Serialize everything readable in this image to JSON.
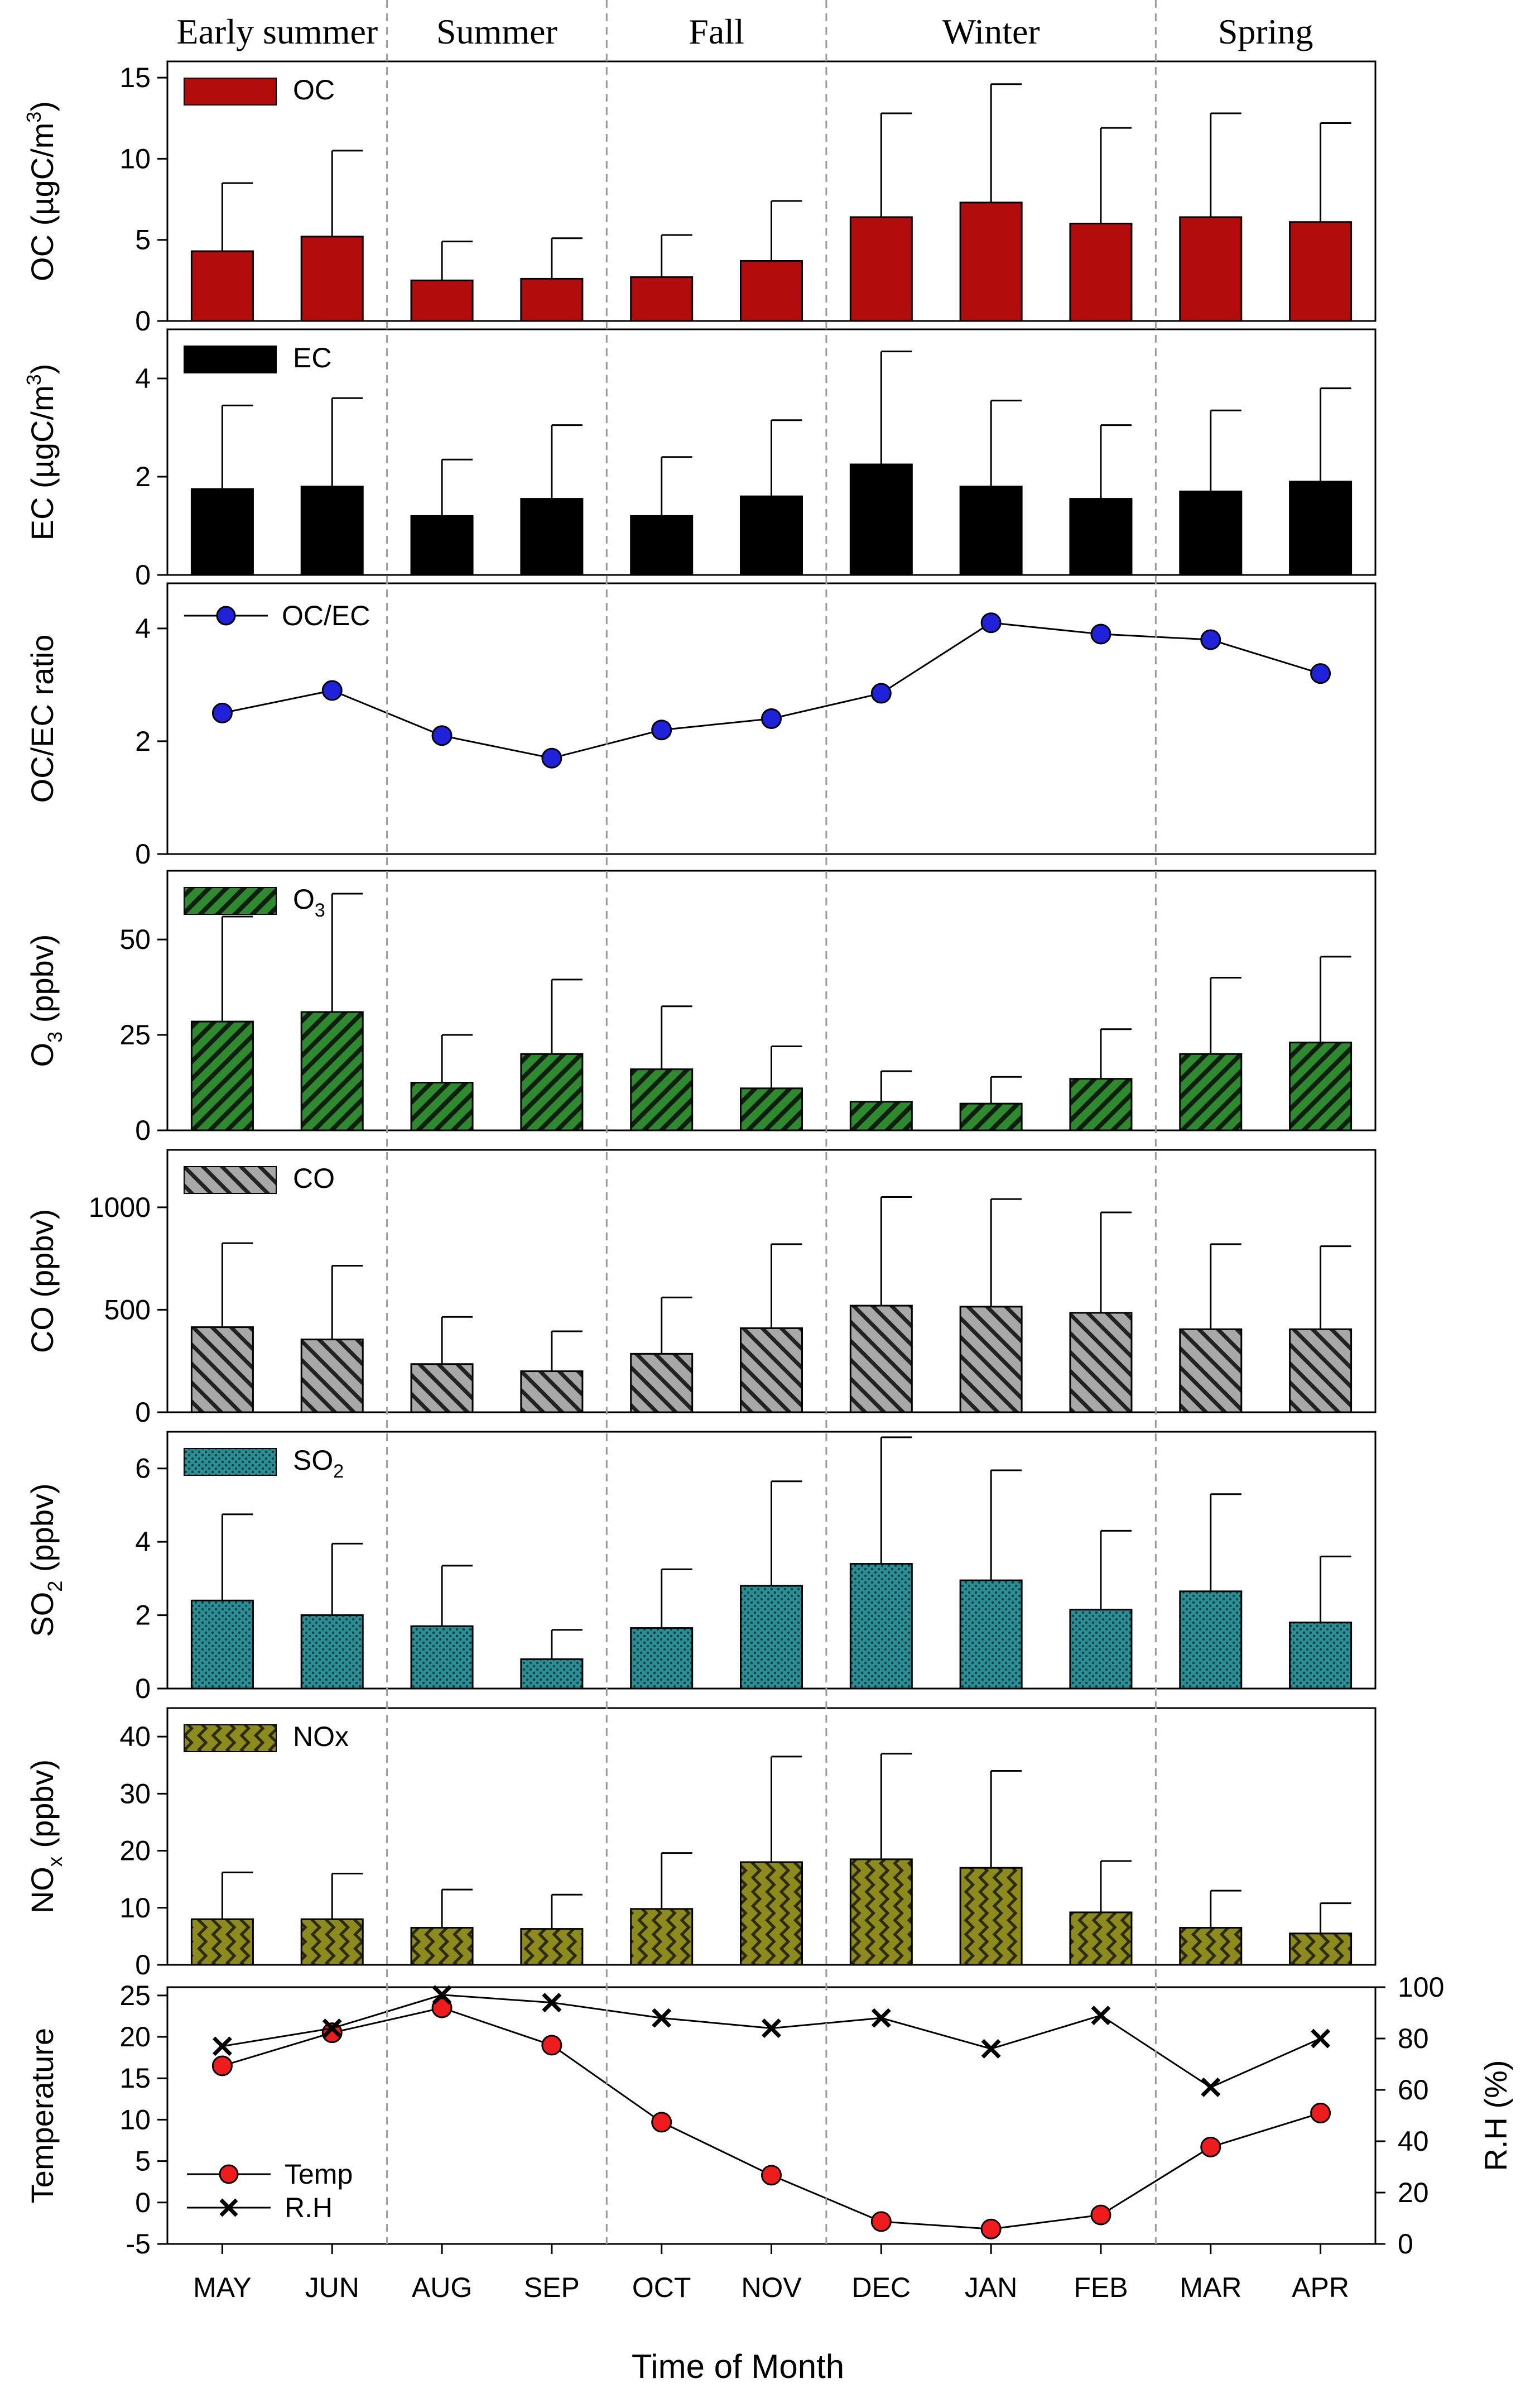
{
  "seasons": [
    {
      "label": "Early summer",
      "start": 0,
      "end": 2
    },
    {
      "label": "Summer",
      "start": 2,
      "end": 4
    },
    {
      "label": "Fall",
      "start": 4,
      "end": 6
    },
    {
      "label": "Winter",
      "start": 6,
      "end": 9
    },
    {
      "label": "Spring",
      "start": 9,
      "end": 11
    }
  ],
  "xaxis": {
    "categories": [
      "MAY",
      "JUN",
      "AUG",
      "SEP",
      "OCT",
      "NOV",
      "DEC",
      "JAN",
      "FEB",
      "MAR",
      "APR"
    ],
    "title": "Time of Month"
  },
  "colors": {
    "oc": "#b30c0c",
    "ec": "#000000",
    "ocec_marker": "#1f22d8",
    "o3": "#2f8a2f",
    "co": "#a8a8a8",
    "so2": "#2a8e95",
    "nox": "#8d8b1d",
    "temp_marker": "#ee1c1c",
    "divider": "#9a9a9a"
  },
  "chart_data": [
    {
      "id": "oc",
      "type": "bar",
      "title": "",
      "ylabel": {
        "main": "OC (µgC/m",
        "sup": "3",
        "tail": ")"
      },
      "legend": {
        "label": "OC",
        "sub": "",
        "pattern": "solid-oc"
      },
      "ylim": [
        0,
        16
      ],
      "yticks": [
        0,
        5,
        10,
        15
      ],
      "values": [
        4.3,
        5.2,
        2.5,
        2.6,
        2.7,
        3.7,
        6.4,
        7.3,
        6.0,
        6.4,
        6.1
      ],
      "errors": [
        4.2,
        5.3,
        2.4,
        2.5,
        2.6,
        3.7,
        6.4,
        7.3,
        5.9,
        6.4,
        6.1
      ]
    },
    {
      "id": "ec",
      "type": "bar",
      "title": "",
      "ylabel": {
        "main": "EC (µgC/m",
        "sup": "3",
        "tail": ")"
      },
      "legend": {
        "label": "EC",
        "sub": "",
        "pattern": "solid-ec"
      },
      "ylim": [
        0,
        5
      ],
      "yticks": [
        0,
        2,
        4
      ],
      "values": [
        1.75,
        1.8,
        1.2,
        1.55,
        1.2,
        1.6,
        2.25,
        1.8,
        1.55,
        1.7,
        1.9
      ],
      "errors": [
        1.7,
        1.8,
        1.15,
        1.5,
        1.2,
        1.55,
        2.3,
        1.75,
        1.5,
        1.65,
        1.9
      ]
    },
    {
      "id": "ocec",
      "type": "line",
      "title": "",
      "ylabel": {
        "main": "OC/EC ratio",
        "sup": "",
        "tail": ""
      },
      "legend": {
        "label": "OC/EC"
      },
      "ylim": [
        0,
        4.8
      ],
      "yticks": [
        0,
        2,
        4
      ],
      "values": [
        2.5,
        2.9,
        2.1,
        1.7,
        2.2,
        2.4,
        2.85,
        4.1,
        3.9,
        3.8,
        3.2
      ]
    },
    {
      "id": "o3",
      "type": "bar",
      "title": "",
      "ylabel": {
        "main": "O",
        "sub": "3",
        "tail": " (ppbv)"
      },
      "legend": {
        "label": "O",
        "sub": "3",
        "pattern": "diag-o3"
      },
      "ylim": [
        0,
        68
      ],
      "yticks": [
        0,
        25,
        50
      ],
      "values": [
        28.5,
        31,
        12.5,
        20,
        16,
        11,
        7.5,
        7,
        13.5,
        20,
        23
      ],
      "errors": [
        27.5,
        31,
        12.5,
        19.5,
        16.5,
        11,
        8,
        7,
        13,
        20,
        22.5
      ]
    },
    {
      "id": "co",
      "type": "bar",
      "title": "",
      "ylabel": {
        "main": "CO (ppbv)",
        "sup": "",
        "tail": ""
      },
      "legend": {
        "label": "CO",
        "sub": "",
        "pattern": "diag-co"
      },
      "ylim": [
        0,
        1280
      ],
      "yticks": [
        0,
        500,
        1000
      ],
      "values": [
        415,
        355,
        235,
        200,
        285,
        410,
        520,
        515,
        485,
        405,
        405
      ],
      "errors": [
        410,
        360,
        230,
        195,
        275,
        410,
        530,
        525,
        490,
        415,
        405
      ]
    },
    {
      "id": "so2",
      "type": "bar",
      "title": "",
      "ylabel": {
        "main": "SO",
        "sub": "2",
        "tail": " (ppbv)"
      },
      "legend": {
        "label": "SO",
        "sub": "2",
        "pattern": "dots-so2"
      },
      "ylim": [
        0,
        7
      ],
      "yticks": [
        0,
        2,
        4,
        6
      ],
      "values": [
        2.4,
        2.0,
        1.7,
        0.8,
        1.65,
        2.8,
        3.4,
        2.95,
        2.15,
        2.65,
        1.8
      ],
      "errors": [
        2.35,
        1.95,
        1.65,
        0.8,
        1.6,
        2.85,
        3.45,
        3.0,
        2.15,
        2.65,
        1.8
      ]
    },
    {
      "id": "nox",
      "type": "bar",
      "title": "",
      "ylabel": {
        "main": "NO",
        "sub": "x",
        "tail": " (ppbv)"
      },
      "legend": {
        "label": "NOx",
        "sub": "",
        "pattern": "weave-nox"
      },
      "ylim": [
        0,
        45
      ],
      "yticks": [
        0,
        10,
        20,
        30,
        40
      ],
      "values": [
        8,
        8,
        6.5,
        6.3,
        9.8,
        18,
        18.5,
        17,
        9.2,
        6.5,
        5.5
      ],
      "errors": [
        8.2,
        8,
        6.7,
        6,
        9.8,
        18.5,
        18.5,
        17,
        9,
        6.5,
        5.3
      ]
    },
    {
      "id": "meteo",
      "type": "line",
      "title": "",
      "ylabel": {
        "main": "Temperature",
        "right": "R.H (%)"
      },
      "ylim": [
        -5,
        26
      ],
      "yticks": [
        -5,
        0,
        5,
        10,
        15,
        20,
        25
      ],
      "ylim_right": [
        0,
        100
      ],
      "yticks_right": [
        0,
        20,
        40,
        60,
        80,
        100
      ],
      "series": [
        {
          "name": "Temp",
          "axis": "left",
          "values": [
            16.5,
            20.5,
            23.5,
            19,
            9.7,
            3.3,
            -2.3,
            -3.2,
            -1.5,
            6.7,
            10.8
          ]
        },
        {
          "name": "R.H",
          "axis": "right",
          "values": [
            77,
            84,
            97,
            94,
            88,
            84,
            88,
            76,
            89,
            61,
            80
          ]
        }
      ]
    }
  ]
}
